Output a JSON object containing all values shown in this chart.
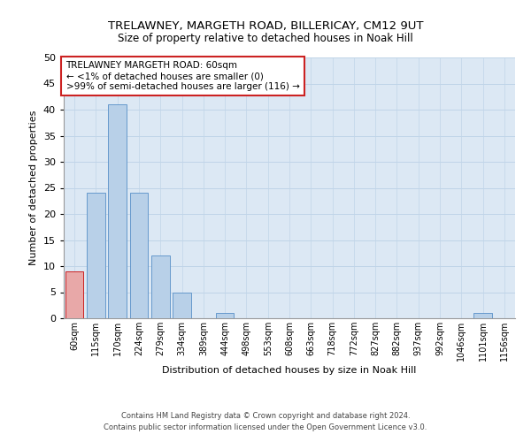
{
  "title1": "TRELAWNEY, MARGETH ROAD, BILLERICAY, CM12 9UT",
  "title2": "Size of property relative to detached houses in Noak Hill",
  "xlabel": "Distribution of detached houses by size in Noak Hill",
  "ylabel": "Number of detached properties",
  "footer1": "Contains HM Land Registry data © Crown copyright and database right 2024.",
  "footer2": "Contains public sector information licensed under the Open Government Licence v3.0.",
  "annotation_line1": "TRELAWNEY MARGETH ROAD: 60sqm",
  "annotation_line2": "← <1% of detached houses are smaller (0)",
  "annotation_line3": ">99% of semi-detached houses are larger (116) →",
  "bar_labels": [
    "60sqm",
    "115sqm",
    "170sqm",
    "224sqm",
    "279sqm",
    "334sqm",
    "389sqm",
    "444sqm",
    "498sqm",
    "553sqm",
    "608sqm",
    "663sqm",
    "718sqm",
    "772sqm",
    "827sqm",
    "882sqm",
    "937sqm",
    "992sqm",
    "1046sqm",
    "1101sqm",
    "1156sqm"
  ],
  "bar_values": [
    9,
    24,
    41,
    24,
    12,
    5,
    0,
    1,
    0,
    0,
    0,
    0,
    0,
    0,
    0,
    0,
    0,
    0,
    0,
    1,
    0
  ],
  "bar_color_normal": "#b8d0e8",
  "bar_color_highlight": "#e8a8a8",
  "highlight_index": 0,
  "bar_edge_color": "#6699cc",
  "highlight_edge_color": "#cc2222",
  "ylim": [
    0,
    50
  ],
  "yticks": [
    0,
    5,
    10,
    15,
    20,
    25,
    30,
    35,
    40,
    45,
    50
  ],
  "grid_color": "#c0d4e8",
  "background_color": "#dce8f4",
  "title1_fontsize": 9.5,
  "title2_fontsize": 8.5,
  "ylabel_fontsize": 8,
  "xlabel_fontsize": 8,
  "ytick_fontsize": 8,
  "xtick_fontsize": 7,
  "footer_fontsize": 6,
  "ann_fontsize": 7.5
}
